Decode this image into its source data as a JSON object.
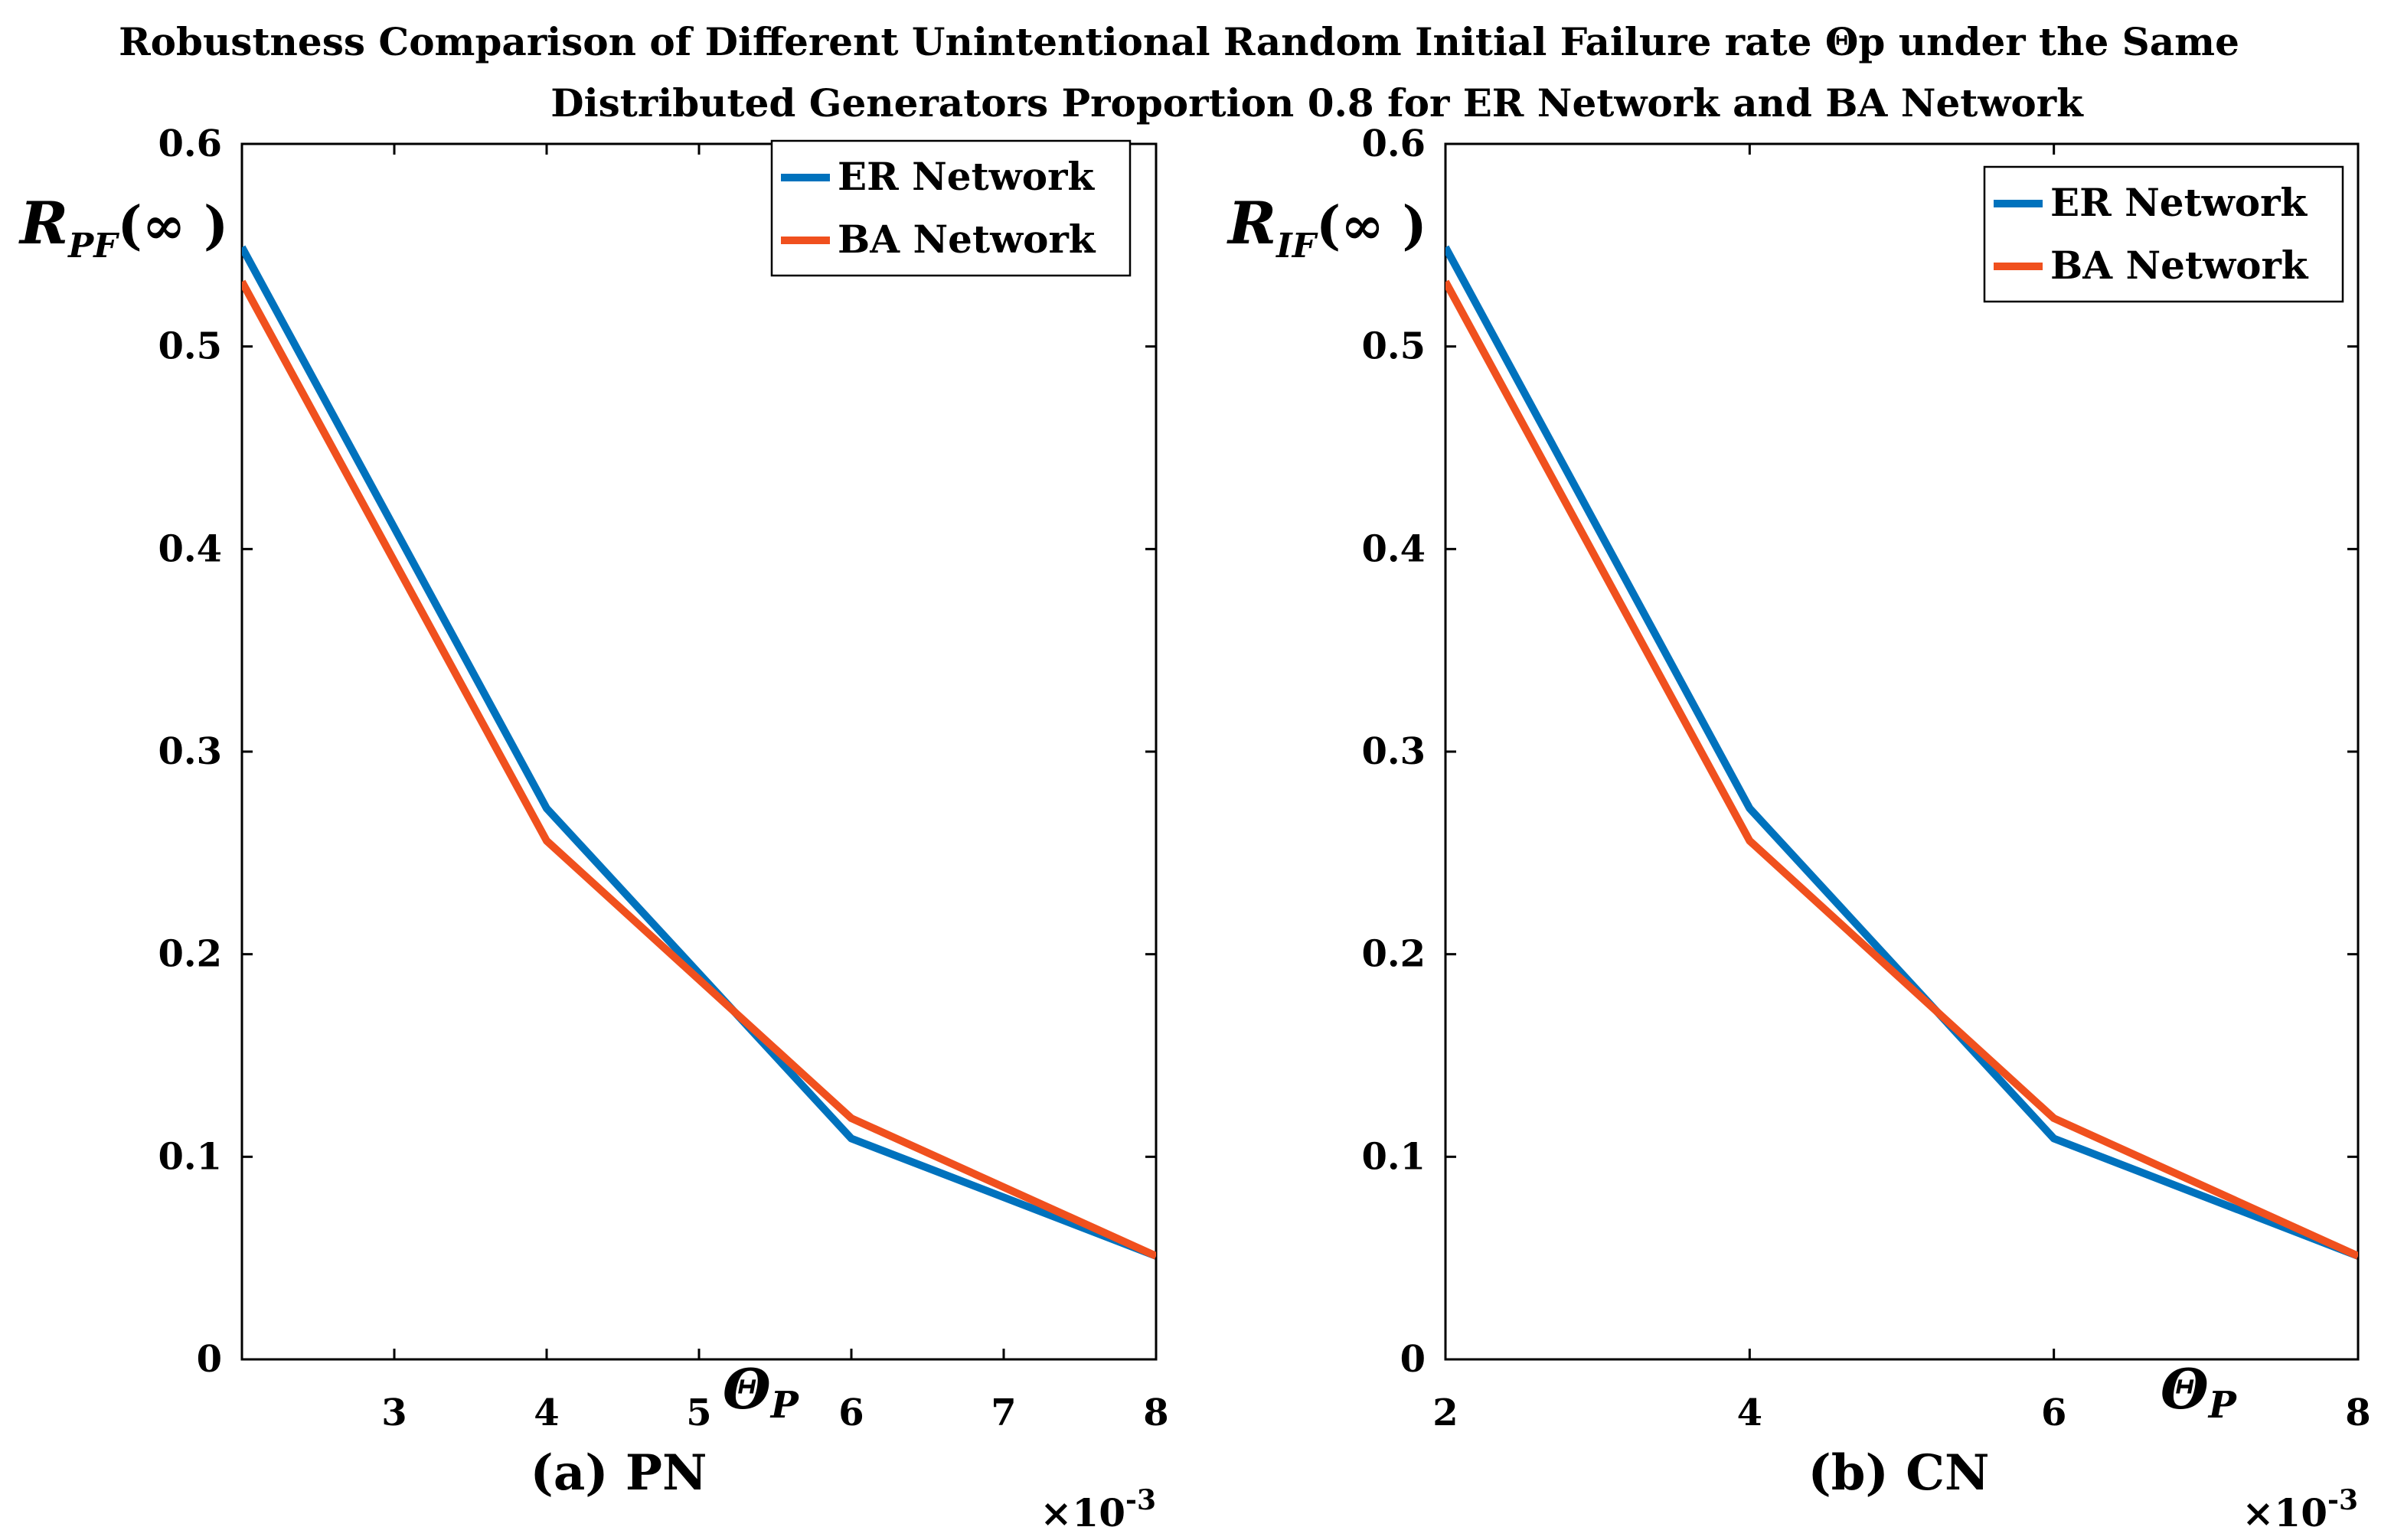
{
  "title_line1": "Robustness Comparison of Different Unintentional Random Initial Failure rate Θp  under the Same",
  "title_line2": "Distributed Generators Proportion 0.8 for ER Network and BA Network",
  "colors": {
    "er": "#0072BD",
    "ba": "#F0501E",
    "axis": "#000000"
  },
  "chart_data": [
    {
      "type": "line",
      "panel_label": "(a) PN",
      "ylabel_main": "R",
      "ylabel_sub": "PF",
      "ylabel_arg": "(∞ )",
      "xlabel_main": "Θ",
      "xlabel_sub": "P",
      "x_exponent_base": "×10",
      "x_exponent_power": "-3",
      "xlim": [
        2,
        8
      ],
      "ylim": [
        0,
        0.6
      ],
      "xticks": [
        3,
        4,
        5,
        6,
        7,
        8
      ],
      "xtick_labels": [
        "3",
        "4",
        "5",
        "6",
        "7",
        "8"
      ],
      "yticks": [
        0,
        0.1,
        0.2,
        0.3,
        0.4,
        0.5,
        0.6
      ],
      "ytick_labels": [
        "0",
        "0.1",
        "0.2",
        "0.3",
        "0.4",
        "0.5",
        "0.6"
      ],
      "legend_position": "top-right",
      "series": [
        {
          "name": "ER Network",
          "key": "er",
          "x": [
            2,
            4,
            6,
            8
          ],
          "y": [
            0.549,
            0.272,
            0.109,
            0.051
          ]
        },
        {
          "name": "BA Network",
          "key": "ba",
          "x": [
            2,
            4,
            6,
            8
          ],
          "y": [
            0.532,
            0.256,
            0.119,
            0.051
          ]
        }
      ]
    },
    {
      "type": "line",
      "panel_label": "(b) CN",
      "ylabel_main": "R",
      "ylabel_sub": "IF",
      "ylabel_arg": "(∞ )",
      "xlabel_main": "Θ",
      "xlabel_sub": "P",
      "x_exponent_base": "×10",
      "x_exponent_power": "-3",
      "xlim": [
        2,
        8
      ],
      "ylim": [
        0,
        0.6
      ],
      "xticks": [
        2,
        4,
        6,
        8
      ],
      "xtick_labels": [
        "2",
        "4",
        "6",
        "8"
      ],
      "yticks": [
        0,
        0.1,
        0.2,
        0.3,
        0.4,
        0.5,
        0.6
      ],
      "ytick_labels": [
        "0",
        "0.1",
        "0.2",
        "0.3",
        "0.4",
        "0.5",
        "0.6"
      ],
      "legend_position": "top-right",
      "series": [
        {
          "name": "ER Network",
          "key": "er",
          "x": [
            2,
            4,
            6,
            8
          ],
          "y": [
            0.549,
            0.272,
            0.109,
            0.051
          ]
        },
        {
          "name": "BA Network",
          "key": "ba",
          "x": [
            2,
            4,
            6,
            8
          ],
          "y": [
            0.532,
            0.256,
            0.119,
            0.051
          ]
        }
      ]
    }
  ]
}
